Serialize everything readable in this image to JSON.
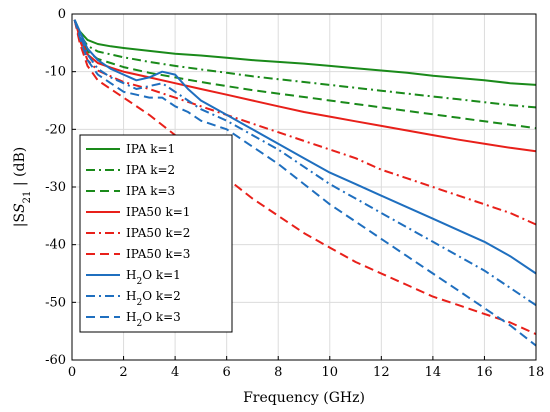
{
  "chart_data": {
    "type": "line",
    "xlabel": "Frequency (GHz)",
    "ylabel_main": "|S",
    "ylabel_sub": "21",
    "ylabel_end": " | (dB)",
    "xlim": [
      0,
      18
    ],
    "ylim": [
      -60,
      0
    ],
    "xticks": [
      0,
      2,
      4,
      6,
      8,
      10,
      12,
      14,
      16,
      18
    ],
    "yticks": [
      0,
      -10,
      -20,
      -30,
      -40,
      -50,
      -60
    ],
    "grid": true,
    "legend_position": "left-middle",
    "series": [
      {
        "name": "IPA k=1",
        "label_main": "IPA k=1",
        "label_sub": "",
        "label_tail": "",
        "color": "#1a8a1a",
        "dash": "solid",
        "points": [
          [
            0.1,
            -1
          ],
          [
            0.3,
            -3
          ],
          [
            0.6,
            -4.5
          ],
          [
            1,
            -5.2
          ],
          [
            1.5,
            -5.6
          ],
          [
            2,
            -5.9
          ],
          [
            3,
            -6.4
          ],
          [
            4,
            -6.9
          ],
          [
            5,
            -7.2
          ],
          [
            6,
            -7.6
          ],
          [
            7,
            -8
          ],
          [
            8,
            -8.3
          ],
          [
            9,
            -8.6
          ],
          [
            10,
            -9
          ],
          [
            11,
            -9.4
          ],
          [
            12,
            -9.8
          ],
          [
            13,
            -10.2
          ],
          [
            14,
            -10.7
          ],
          [
            15,
            -11.1
          ],
          [
            16,
            -11.5
          ],
          [
            17,
            -12
          ],
          [
            18,
            -12.3
          ]
        ]
      },
      {
        "name": "IPA k=2",
        "label_main": "IPA k=2",
        "label_sub": "",
        "label_tail": "",
        "color": "#1a8a1a",
        "dash": "dashdot",
        "points": [
          [
            0.1,
            -1
          ],
          [
            0.3,
            -3.5
          ],
          [
            0.6,
            -5.5
          ],
          [
            1,
            -6.5
          ],
          [
            1.5,
            -7
          ],
          [
            2,
            -7.5
          ],
          [
            3,
            -8.3
          ],
          [
            4,
            -9
          ],
          [
            5,
            -9.6
          ],
          [
            6,
            -10.2
          ],
          [
            7,
            -10.8
          ],
          [
            8,
            -11.3
          ],
          [
            9,
            -11.8
          ],
          [
            10,
            -12.3
          ],
          [
            11,
            -12.8
          ],
          [
            12,
            -13.3
          ],
          [
            13,
            -13.8
          ],
          [
            14,
            -14.3
          ],
          [
            15,
            -14.8
          ],
          [
            16,
            -15.3
          ],
          [
            17,
            -15.8
          ],
          [
            18,
            -16.2
          ]
        ]
      },
      {
        "name": "IPA k=3",
        "label_main": "IPA k=3",
        "label_sub": "",
        "label_tail": "",
        "color": "#1a8a1a",
        "dash": "dash",
        "points": [
          [
            0.1,
            -1
          ],
          [
            0.3,
            -4
          ],
          [
            0.6,
            -6.5
          ],
          [
            1,
            -7.8
          ],
          [
            1.5,
            -8.5
          ],
          [
            2,
            -9.2
          ],
          [
            3,
            -10.2
          ],
          [
            4,
            -11
          ],
          [
            5,
            -11.8
          ],
          [
            6,
            -12.5
          ],
          [
            7,
            -13.2
          ],
          [
            8,
            -13.8
          ],
          [
            9,
            -14.4
          ],
          [
            10,
            -15
          ],
          [
            11,
            -15.6
          ],
          [
            12,
            -16.2
          ],
          [
            13,
            -16.8
          ],
          [
            14,
            -17.4
          ],
          [
            15,
            -18
          ],
          [
            16,
            -18.6
          ],
          [
            17,
            -19.2
          ],
          [
            18,
            -19.8
          ]
        ]
      },
      {
        "name": "IPA50 k=1",
        "label_main": "IPA50 k=1",
        "label_sub": "",
        "label_tail": "",
        "color": "#e8201a",
        "dash": "solid",
        "points": [
          [
            0.1,
            -1
          ],
          [
            0.3,
            -4
          ],
          [
            0.6,
            -7
          ],
          [
            1,
            -8.5
          ],
          [
            1.5,
            -9.3
          ],
          [
            2,
            -10
          ],
          [
            3,
            -11
          ],
          [
            4,
            -12
          ],
          [
            5,
            -13
          ],
          [
            6,
            -14
          ],
          [
            7,
            -15
          ],
          [
            8,
            -16
          ],
          [
            9,
            -17
          ],
          [
            10,
            -17.8
          ],
          [
            11,
            -18.6
          ],
          [
            12,
            -19.4
          ],
          [
            13,
            -20.2
          ],
          [
            14,
            -21
          ],
          [
            15,
            -21.8
          ],
          [
            16,
            -22.5
          ],
          [
            17,
            -23.2
          ],
          [
            18,
            -23.8
          ]
        ]
      },
      {
        "name": "IPA50 k=2",
        "label_main": "IPA50 k=2",
        "label_sub": "",
        "label_tail": "",
        "color": "#e8201a",
        "dash": "dashdot",
        "points": [
          [
            0.1,
            -1
          ],
          [
            0.3,
            -4.5
          ],
          [
            0.6,
            -8
          ],
          [
            1,
            -9.8
          ],
          [
            1.5,
            -10.8
          ],
          [
            2,
            -11.8
          ],
          [
            3,
            -13
          ],
          [
            4,
            -14.5
          ],
          [
            5,
            -16
          ],
          [
            6,
            -17.5
          ],
          [
            7,
            -19
          ],
          [
            8,
            -20.5
          ],
          [
            9,
            -22
          ],
          [
            10,
            -23.5
          ],
          [
            11,
            -25
          ],
          [
            12,
            -27
          ],
          [
            13,
            -28.5
          ],
          [
            14,
            -30
          ],
          [
            15,
            -31.5
          ],
          [
            16,
            -33
          ],
          [
            17,
            -34.5
          ],
          [
            18,
            -36.5
          ]
        ]
      },
      {
        "name": "IPA50 k=3",
        "label_main": "IPA50 k=3",
        "label_sub": "",
        "label_tail": "",
        "color": "#e8201a",
        "dash": "dash",
        "points": [
          [
            0.1,
            -1
          ],
          [
            0.3,
            -5
          ],
          [
            0.6,
            -9
          ],
          [
            1,
            -11.5
          ],
          [
            1.5,
            -13
          ],
          [
            2,
            -14.5
          ],
          [
            3,
            -17.5
          ],
          [
            4,
            -21
          ],
          [
            5,
            -25
          ],
          [
            6,
            -28.5
          ],
          [
            7,
            -32
          ],
          [
            8,
            -35
          ],
          [
            9,
            -38
          ],
          [
            10,
            -40.5
          ],
          [
            11,
            -43
          ],
          [
            12,
            -45
          ],
          [
            13,
            -47
          ],
          [
            14,
            -49
          ],
          [
            15,
            -50.5
          ],
          [
            16,
            -52
          ],
          [
            17,
            -53.5
          ],
          [
            18,
            -55.5
          ]
        ]
      },
      {
        "name": "H2O k=1",
        "label_main": "H",
        "label_sub": "2",
        "label_tail": "O k=1",
        "color": "#1f6fbf",
        "dash": "solid",
        "points": [
          [
            0.1,
            -1
          ],
          [
            0.3,
            -3
          ],
          [
            0.6,
            -6
          ],
          [
            1,
            -8
          ],
          [
            1.5,
            -9.5
          ],
          [
            2,
            -10.5
          ],
          [
            2.5,
            -11.5
          ],
          [
            3,
            -11
          ],
          [
            3.5,
            -10
          ],
          [
            4,
            -10.5
          ],
          [
            4.5,
            -13
          ],
          [
            5,
            -15
          ],
          [
            6,
            -17.5
          ],
          [
            7,
            -20
          ],
          [
            8,
            -22.5
          ],
          [
            9,
            -25
          ],
          [
            10,
            -27.5
          ],
          [
            11,
            -29.5
          ],
          [
            12,
            -31.5
          ],
          [
            13,
            -33.5
          ],
          [
            14,
            -35.5
          ],
          [
            15,
            -37.5
          ],
          [
            16,
            -39.5
          ],
          [
            17,
            -42
          ],
          [
            18,
            -45
          ]
        ]
      },
      {
        "name": "H2O k=2",
        "label_main": "H",
        "label_sub": "2",
        "label_tail": "O k=2",
        "color": "#1f6fbf",
        "dash": "dashdot",
        "points": [
          [
            0.1,
            -1
          ],
          [
            0.3,
            -3.5
          ],
          [
            0.6,
            -7
          ],
          [
            1,
            -9.5
          ],
          [
            1.5,
            -11
          ],
          [
            2,
            -12
          ],
          [
            2.5,
            -13
          ],
          [
            3,
            -12.5
          ],
          [
            3.5,
            -12
          ],
          [
            4,
            -13.5
          ],
          [
            4.5,
            -15
          ],
          [
            5,
            -16.5
          ],
          [
            6,
            -18.5
          ],
          [
            7,
            -21
          ],
          [
            8,
            -23.5
          ],
          [
            9,
            -26.5
          ],
          [
            10,
            -29.5
          ],
          [
            11,
            -32
          ],
          [
            12,
            -34.5
          ],
          [
            13,
            -37
          ],
          [
            14,
            -39.5
          ],
          [
            15,
            -42
          ],
          [
            16,
            -44.5
          ],
          [
            17,
            -47.5
          ],
          [
            18,
            -50.5
          ]
        ]
      },
      {
        "name": "H2O k=3",
        "label_main": "H",
        "label_sub": "2",
        "label_tail": "O k=3",
        "color": "#1f6fbf",
        "dash": "dash",
        "points": [
          [
            0.1,
            -1
          ],
          [
            0.3,
            -4
          ],
          [
            0.6,
            -8
          ],
          [
            1,
            -10.5
          ],
          [
            1.5,
            -12
          ],
          [
            2,
            -13.5
          ],
          [
            2.5,
            -14
          ],
          [
            3,
            -14.5
          ],
          [
            3.5,
            -14.5
          ],
          [
            4,
            -16
          ],
          [
            4.5,
            -17
          ],
          [
            5,
            -18.5
          ],
          [
            6,
            -20
          ],
          [
            7,
            -23
          ],
          [
            8,
            -26
          ],
          [
            9,
            -29.5
          ],
          [
            10,
            -33
          ],
          [
            11,
            -36
          ],
          [
            12,
            -39
          ],
          [
            13,
            -42
          ],
          [
            14,
            -45
          ],
          [
            15,
            -48
          ],
          [
            16,
            -51
          ],
          [
            17,
            -54
          ],
          [
            18,
            -57.5
          ]
        ]
      }
    ]
  }
}
